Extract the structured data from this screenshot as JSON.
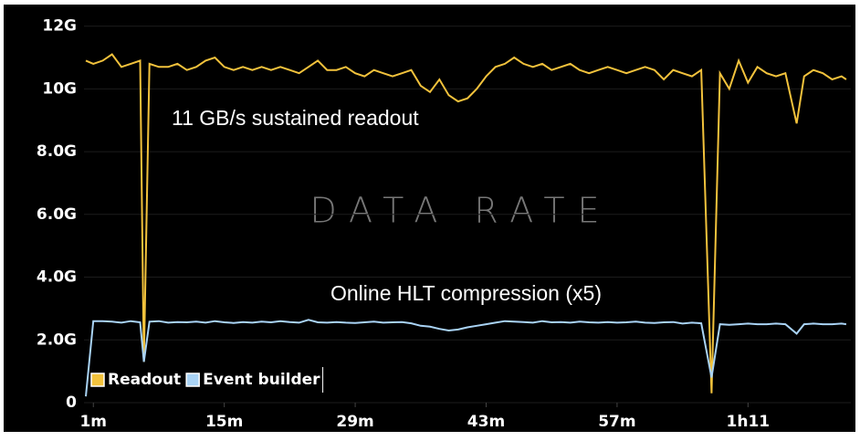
{
  "chart_data": {
    "type": "line",
    "annotations": [
      "11 GB/s sustained readout",
      "DATA RATE",
      "Online HLT compression (x5)"
    ],
    "x": [
      0.2,
      1,
      2,
      3,
      4,
      5,
      6,
      6.4,
      7,
      8,
      9,
      10,
      11,
      12,
      13,
      14,
      15,
      16,
      17,
      18,
      19,
      20,
      21,
      22,
      23,
      24,
      25,
      26,
      27,
      28,
      29,
      30,
      31,
      32,
      33,
      34,
      35,
      36,
      37,
      38,
      39,
      40,
      41,
      42,
      43,
      44,
      45,
      46,
      47,
      48,
      49,
      50,
      51,
      52,
      53,
      54,
      55,
      56,
      57,
      58,
      59,
      60,
      61,
      62,
      63,
      64,
      65,
      66,
      67.1,
      68,
      69,
      70,
      71,
      72,
      73,
      74,
      75,
      76.2,
      77,
      78,
      79,
      80,
      81,
      81.5
    ],
    "series": [
      {
        "name": "Readout",
        "color": "#f2c23c",
        "values": [
          10.9,
          10.8,
          10.9,
          11.1,
          10.7,
          10.8,
          10.9,
          1.3,
          10.8,
          10.7,
          10.7,
          10.8,
          10.6,
          10.7,
          10.9,
          11.0,
          10.7,
          10.6,
          10.7,
          10.6,
          10.7,
          10.6,
          10.7,
          10.6,
          10.5,
          10.7,
          10.9,
          10.6,
          10.6,
          10.7,
          10.5,
          10.4,
          10.6,
          10.5,
          10.4,
          10.5,
          10.6,
          10.1,
          9.9,
          10.3,
          9.8,
          9.6,
          9.7,
          10.0,
          10.4,
          10.7,
          10.8,
          11.0,
          10.8,
          10.7,
          10.8,
          10.6,
          10.7,
          10.8,
          10.6,
          10.5,
          10.6,
          10.7,
          10.6,
          10.5,
          10.6,
          10.7,
          10.6,
          10.3,
          10.6,
          10.5,
          10.4,
          10.6,
          0.3,
          10.5,
          10.0,
          10.9,
          10.2,
          10.7,
          10.5,
          10.4,
          10.5,
          8.9,
          10.4,
          10.6,
          10.5,
          10.3,
          10.4,
          10.3
        ]
      },
      {
        "name": "Event builder",
        "color": "#a9d3f5",
        "values": [
          0.2,
          2.6,
          2.6,
          2.58,
          2.55,
          2.6,
          2.56,
          1.3,
          2.58,
          2.6,
          2.55,
          2.57,
          2.56,
          2.58,
          2.55,
          2.6,
          2.56,
          2.54,
          2.57,
          2.55,
          2.58,
          2.56,
          2.6,
          2.57,
          2.55,
          2.64,
          2.56,
          2.55,
          2.57,
          2.55,
          2.54,
          2.56,
          2.58,
          2.55,
          2.56,
          2.57,
          2.53,
          2.45,
          2.42,
          2.35,
          2.3,
          2.33,
          2.4,
          2.45,
          2.5,
          2.55,
          2.6,
          2.58,
          2.57,
          2.55,
          2.6,
          2.56,
          2.57,
          2.55,
          2.58,
          2.56,
          2.55,
          2.57,
          2.55,
          2.56,
          2.58,
          2.55,
          2.54,
          2.56,
          2.57,
          2.52,
          2.55,
          2.53,
          0.8,
          2.5,
          2.48,
          2.5,
          2.52,
          2.5,
          2.5,
          2.52,
          2.5,
          2.2,
          2.5,
          2.52,
          2.5,
          2.5,
          2.52,
          2.5
        ]
      }
    ],
    "xlim": [
      0,
      82
    ],
    "ylim": [
      0,
      12.6
    ],
    "xticks": [
      {
        "value": 1,
        "label": "1m"
      },
      {
        "value": 15,
        "label": "15m"
      },
      {
        "value": 29,
        "label": "29m"
      },
      {
        "value": 43,
        "label": "43m"
      },
      {
        "value": 57,
        "label": "57m"
      },
      {
        "value": 71,
        "label": "1h11"
      }
    ],
    "yticks": [
      0,
      {
        "value": 2,
        "label": "2.0G"
      },
      {
        "value": 4,
        "label": "4.0G"
      },
      {
        "value": 6,
        "label": "6.0G"
      },
      {
        "value": 8,
        "label": "8.0G"
      },
      {
        "value": 10,
        "label": "10G"
      },
      {
        "value": 12,
        "label": "12G"
      }
    ],
    "grid": true
  }
}
